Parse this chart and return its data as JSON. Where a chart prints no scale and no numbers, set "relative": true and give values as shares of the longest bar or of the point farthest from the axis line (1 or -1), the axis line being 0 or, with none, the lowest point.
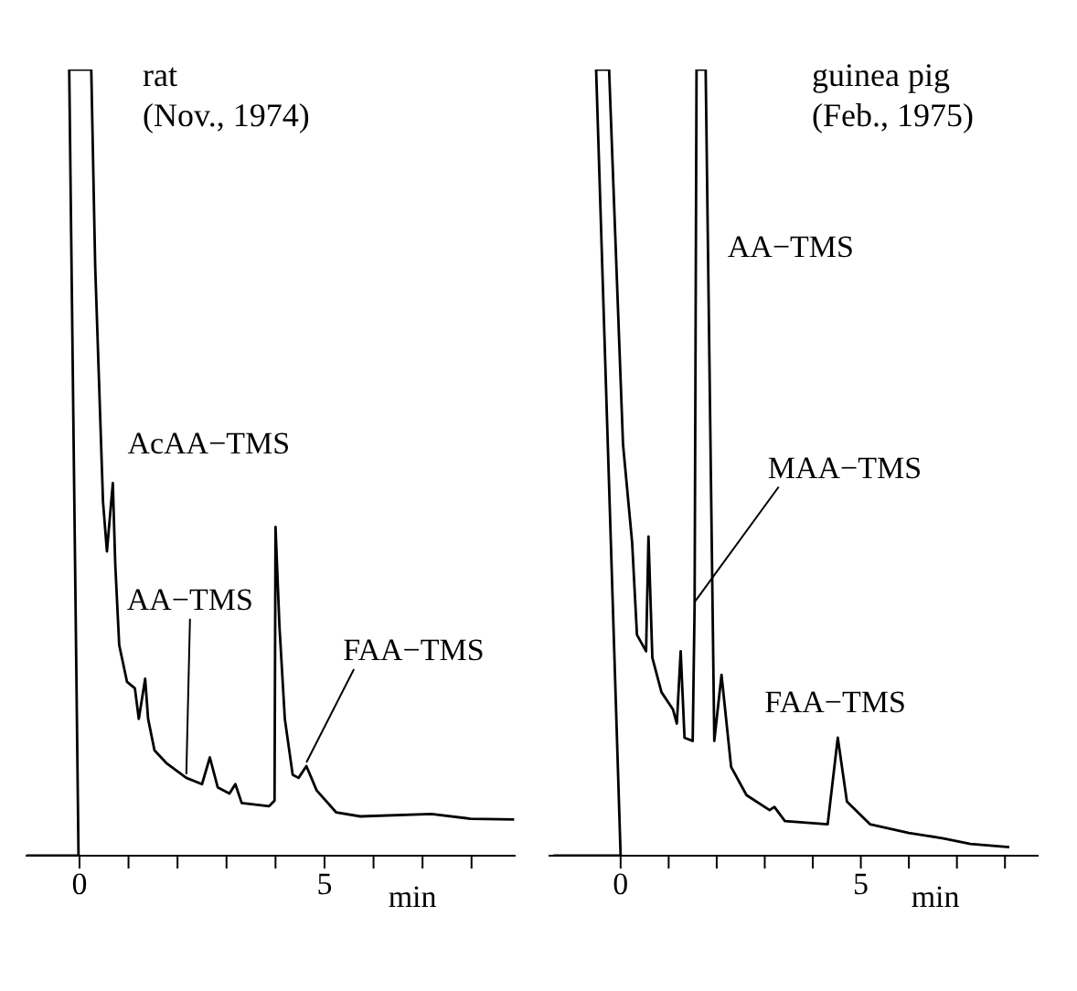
{
  "chart_data": [
    {
      "type": "line",
      "relative": true,
      "title": "rat",
      "subtitle": "(Nov., 1974)",
      "xlabel": "min",
      "color": "#000000",
      "marker": "none",
      "x": [
        -1.08,
        -0.02,
        -0.21,
        0.24,
        0.32,
        0.48,
        0.56,
        0.68,
        0.73,
        0.81,
        0.97,
        1.13,
        1.21,
        1.34,
        1.4,
        1.53,
        1.77,
        2.18,
        2.5,
        2.66,
        2.82,
        3.06,
        3.18,
        3.31,
        3.87,
        3.98,
        4.0,
        4.08,
        4.19,
        4.35,
        4.47,
        4.63,
        4.84,
        5.24,
        5.73,
        7.18,
        7.98,
        8.87
      ],
      "values": [
        0,
        0,
        1,
        1,
        0.75,
        0.45,
        0.387,
        0.474,
        0.37,
        0.268,
        0.221,
        0.213,
        0.174,
        0.225,
        0.174,
        0.134,
        0.118,
        0.099,
        0.091,
        0.125,
        0.087,
        0.079,
        0.091,
        0.067,
        0.063,
        0.07,
        0.418,
        0.292,
        0.174,
        0.103,
        0.099,
        0.114,
        0.083,
        0.055,
        0.05,
        0.053,
        0.047,
        0.046
      ],
      "xlim": [
        -1.1,
        8.9
      ],
      "xticks": [
        {
          "value": 0,
          "label": "0"
        },
        {
          "value": 1,
          "label": null
        },
        {
          "value": 2,
          "label": null
        },
        {
          "value": 3,
          "label": null
        },
        {
          "value": 4,
          "label": null
        },
        {
          "value": 5,
          "label": "5"
        },
        {
          "value": 6,
          "label": null
        },
        {
          "value": 7,
          "label": null
        },
        {
          "value": 8,
          "label": null
        }
      ],
      "annotations": [
        {
          "text": "AcAA−TMS",
          "x": 0.68,
          "y": 0.474
        },
        {
          "text": "AA−TMS",
          "x": 2.18,
          "y": 0.099
        },
        {
          "text": "FAA−TMS",
          "x": 4.63,
          "y": 0.114
        }
      ]
    },
    {
      "type": "line",
      "relative": true,
      "title": "guinea pig",
      "subtitle": "(Feb., 1975)",
      "xlabel": "min",
      "color": "#000000",
      "marker": "none",
      "x": [
        -1.4,
        0,
        -0.51,
        -0.24,
        0.05,
        0.24,
        0.34,
        0.53,
        0.58,
        0.66,
        0.85,
        1.09,
        1.17,
        1.25,
        1.33,
        1.5,
        1.54,
        1.58,
        1.77,
        1.95,
        2.1,
        2.3,
        2.62,
        3.1,
        3.2,
        3.42,
        4.31,
        4.52,
        4.71,
        5.19,
        6.0,
        6.72,
        7.28,
        8.09
      ],
      "values": [
        0,
        0,
        1,
        1,
        0.523,
        0.398,
        0.281,
        0.26,
        0.406,
        0.252,
        0.208,
        0.186,
        0.168,
        0.26,
        0.15,
        0.146,
        0.318,
        1,
        1,
        0.146,
        0.23,
        0.113,
        0.077,
        0.058,
        0.062,
        0.044,
        0.04,
        0.15,
        0.069,
        0.04,
        0.029,
        0.022,
        0.015,
        0.011
      ],
      "xlim": [
        -1.5,
        8.7
      ],
      "xticks": [
        {
          "value": 0,
          "label": "0"
        },
        {
          "value": 1,
          "label": null
        },
        {
          "value": 2,
          "label": null
        },
        {
          "value": 3,
          "label": null
        },
        {
          "value": 4,
          "label": null
        },
        {
          "value": 5,
          "label": "5"
        },
        {
          "value": 6,
          "label": null
        },
        {
          "value": 7,
          "label": null
        },
        {
          "value": 8,
          "label": null
        }
      ],
      "annotations": [
        {
          "text": "AA−TMS",
          "x": 1.77,
          "y": 0.78
        },
        {
          "text": "MAA−TMS",
          "x": 1.54,
          "y": 0.318
        },
        {
          "text": "FAA−TMS",
          "x": 4.52,
          "y": 0.15
        }
      ]
    }
  ]
}
